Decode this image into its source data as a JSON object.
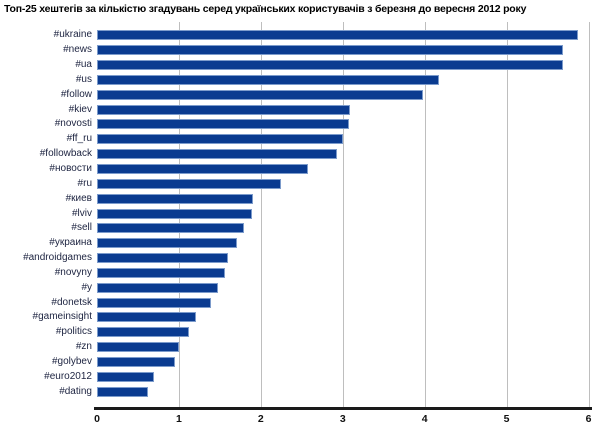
{
  "title": "Топ-25 хештегів за кількістю згадувань серед українських користувачів з березня до вересня 2012 року",
  "chart_data": {
    "type": "bar",
    "orientation": "horizontal",
    "title": "Топ-25 хештегів за кількістю згадувань серед українських користувачів з березня до вересня 2012 року",
    "categories": [
      "#ukraine",
      "#news",
      "#ua",
      "#us",
      "#follow",
      "#kiev",
      "#novosti",
      "#ff_ru",
      "#followback",
      "#новости",
      "#ru",
      "#киев",
      "#lviv",
      "#sell",
      "#украина",
      "#androidgames",
      "#novyny",
      "#y",
      "#donetsk",
      "#gameinsight",
      "#politics",
      "#zn",
      "#golybev",
      "#euro2012",
      "#dating"
    ],
    "values": [
      5.85,
      5.67,
      5.66,
      4.15,
      3.95,
      3.06,
      3.05,
      2.98,
      2.9,
      2.55,
      2.22,
      1.88,
      1.87,
      1.77,
      1.69,
      1.57,
      1.54,
      1.45,
      1.37,
      1.18,
      1.1,
      0.98,
      0.93,
      0.67,
      0.6
    ],
    "xlabel": "",
    "ylabel": "",
    "xlim": [
      0,
      6
    ],
    "x_ticks": [
      "0",
      "1",
      "2",
      "3",
      "4",
      "5",
      "6"
    ],
    "gridlines": "vertical",
    "legend": "none",
    "colors": {
      "bar_fill": "#0a3b90",
      "bar_border": "#7c9bcb",
      "gridline": "#bebebe",
      "axis_line": "#1a1a1a",
      "title_text": "#000000",
      "label_text": "#1c2340"
    }
  }
}
